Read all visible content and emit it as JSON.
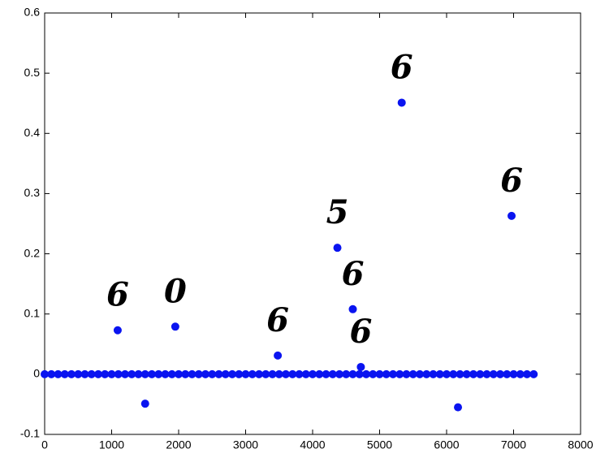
{
  "chart_data": {
    "type": "scatter",
    "xlim": [
      0,
      8000
    ],
    "xticks": [
      0,
      1000,
      2000,
      3000,
      4000,
      5000,
      6000,
      7000,
      8000
    ],
    "ylim": [
      -0.1,
      0.6
    ],
    "yticks": [
      -0.1,
      0,
      0.1,
      0.2,
      0.3,
      0.4,
      0.5,
      0.6
    ],
    "series": [
      {
        "color": "#0a14f0",
        "x": [
          0,
          100,
          200,
          300,
          400,
          500,
          600,
          700,
          800,
          900,
          1000,
          1100,
          1200,
          1300,
          1400,
          1500,
          1600,
          1700,
          1800,
          1900,
          2000,
          2100,
          2200,
          2300,
          2400,
          2500,
          2600,
          2700,
          2800,
          2900,
          3000,
          3100,
          3200,
          3300,
          3400,
          3500,
          3600,
          3700,
          3800,
          3900,
          4000,
          4100,
          4200,
          4300,
          4400,
          4500,
          4600,
          4700,
          4800,
          4900,
          5000,
          5100,
          5200,
          5300,
          5400,
          5500,
          5600,
          5700,
          5800,
          5900,
          6000,
          6100,
          6200,
          6300,
          6400,
          6500,
          6600,
          6700,
          6800,
          6900,
          7000,
          7100,
          7200,
          7300
        ],
        "values": [
          0,
          0,
          0,
          0,
          0,
          0,
          0,
          0,
          0,
          0,
          0,
          0,
          0,
          0,
          0,
          0,
          0,
          0,
          0,
          0,
          0,
          0,
          0,
          0,
          0,
          0,
          0,
          0,
          0,
          0,
          0,
          0,
          0,
          0,
          0,
          0,
          0,
          0,
          0,
          0,
          0,
          0,
          0,
          0,
          0,
          0,
          0,
          0,
          0,
          0,
          0,
          0,
          0,
          0,
          0,
          0,
          0,
          0,
          0,
          0,
          0,
          0,
          0,
          0,
          0,
          0,
          0,
          0,
          0,
          0,
          0,
          0,
          0,
          0
        ]
      },
      {
        "color": "#0a14f0",
        "x": [
          1090,
          1500,
          1950,
          3480,
          4370,
          4600,
          4720,
          5330,
          6170,
          6970
        ],
        "values": [
          0.073,
          -0.049,
          0.079,
          0.031,
          0.21,
          0.108,
          0.012,
          0.451,
          -0.055,
          0.263
        ],
        "labels": [
          "6",
          null,
          "0",
          "6",
          "5",
          "6",
          "6",
          "6",
          null,
          "6"
        ]
      }
    ]
  }
}
